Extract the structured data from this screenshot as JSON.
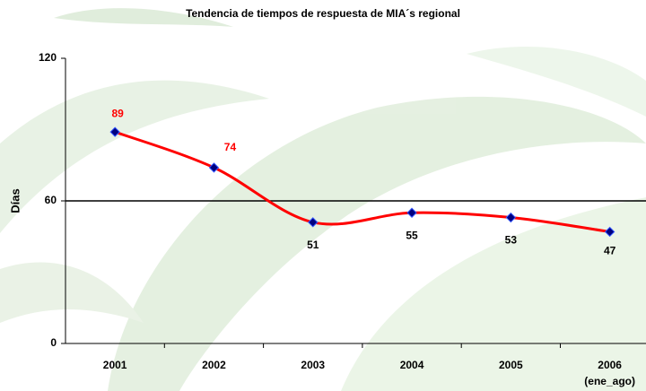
{
  "chart_data": {
    "type": "line",
    "title": "Tendencia de tiempos de respuesta de MIA´s regional",
    "y_label": "Días",
    "categories": [
      "2001",
      "2002",
      "2003",
      "2004",
      "2005",
      "2006\n(ene_ago)"
    ],
    "series": [
      {
        "name": "Días",
        "color": "#ff0000",
        "marker_color": "#000080",
        "values": [
          89,
          74,
          51,
          55,
          53,
          47
        ]
      }
    ],
    "value_label_colors": [
      "#ff0000",
      "#ff0000",
      "#000000",
      "#000000",
      "#000000",
      "#000000"
    ],
    "ylim": [
      0,
      120
    ],
    "yticks": [
      0,
      60,
      120
    ],
    "grid": true,
    "smooth": true
  }
}
